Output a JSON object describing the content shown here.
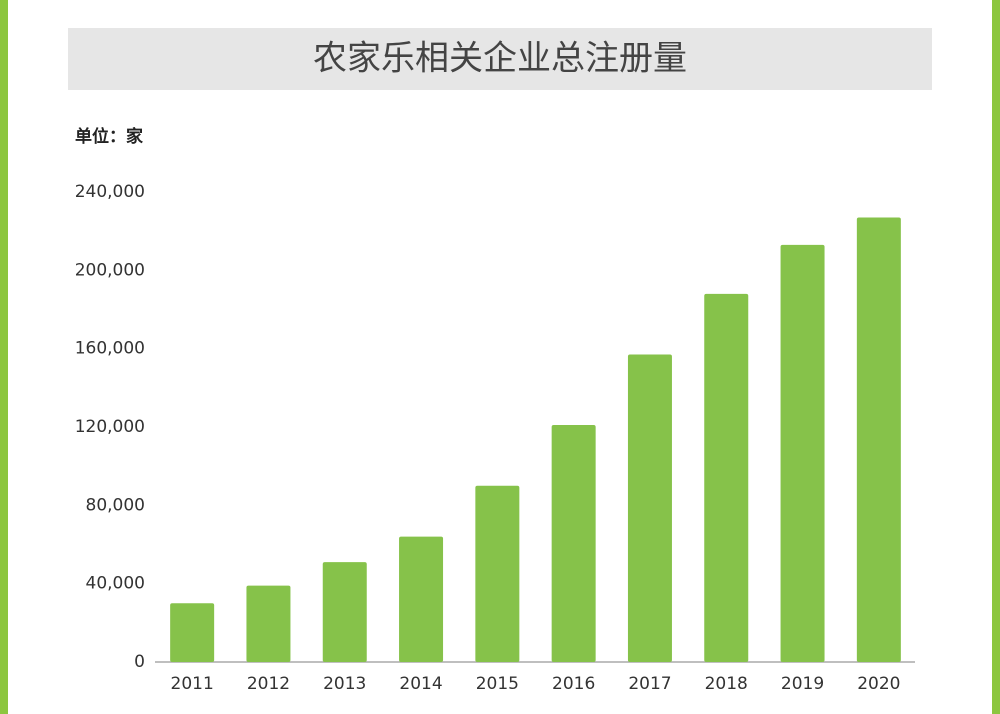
{
  "chart_data": {
    "type": "bar",
    "title": "农家乐相关企业总注册量",
    "unit_label": "单位：家",
    "categories": [
      "2011",
      "2012",
      "2013",
      "2014",
      "2015",
      "2016",
      "2017",
      "2018",
      "2019",
      "2020"
    ],
    "values": [
      30000,
      39000,
      51000,
      64000,
      90000,
      121000,
      157000,
      188000,
      213000,
      227000
    ],
    "color": "#86c24a",
    "ylim": [
      0,
      240000
    ],
    "yticks": [
      0,
      {
        "value": 40000,
        "label": "40,000"
      },
      {
        "value": 80000,
        "label": "80,000"
      },
      {
        "value": 120000,
        "label": "120,000"
      },
      {
        "value": 160000,
        "label": "160,000"
      },
      {
        "value": 200000,
        "label": "200,000"
      },
      {
        "value": 240000,
        "label": "240,000"
      }
    ],
    "grid": false
  }
}
